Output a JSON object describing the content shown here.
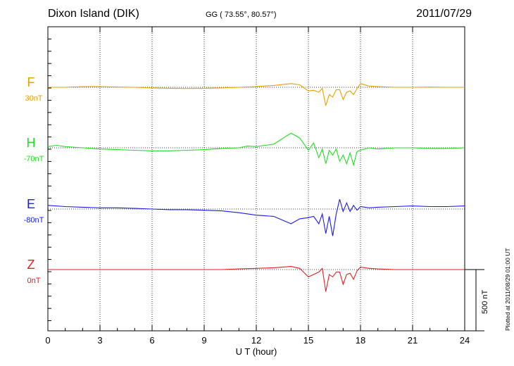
{
  "header": {
    "station": "Dixon Island (DIK)",
    "coordinates": "GG ( 73.55°,  80.57°)",
    "date": "2011/07/29"
  },
  "footer": {
    "plotted": "Plotted at 2011/08/29 01:00 UT",
    "scale_bar_label": "500 nT"
  },
  "chart_data": {
    "type": "line",
    "title": "Dixon Island (DIK)",
    "xlabel": "U T (hour)",
    "ylabel": "",
    "xlim": [
      0,
      24
    ],
    "xticks": [
      "0",
      "3",
      "6",
      "9",
      "12",
      "15",
      "18",
      "21",
      "24"
    ],
    "grid": true,
    "scale_bar_nT": 500,
    "series": [
      {
        "name": "F",
        "baseline_label": "30nT",
        "color": "#e8a000",
        "x": [
          0,
          1,
          2,
          3,
          4,
          5,
          6,
          7,
          8,
          9,
          10,
          11,
          12,
          13,
          14,
          14.5,
          15,
          15.3,
          15.6,
          15.8,
          16,
          16.2,
          16.4,
          16.6,
          16.8,
          17,
          17.2,
          17.4,
          17.6,
          17.8,
          18,
          18.5,
          19,
          20,
          21,
          22,
          23,
          24
        ],
        "y": [
          0,
          0,
          5,
          5,
          2,
          0,
          -5,
          -8,
          -10,
          -8,
          -5,
          0,
          5,
          15,
          30,
          20,
          -30,
          -25,
          -40,
          -10,
          -150,
          -60,
          -80,
          -20,
          -20,
          -100,
          -40,
          -30,
          -60,
          -10,
          30,
          10,
          5,
          0,
          0,
          2,
          0,
          0
        ]
      },
      {
        "name": "H",
        "baseline_label": "-70nT",
        "color": "#22dd22",
        "x": [
          0,
          0.5,
          1,
          2,
          3,
          4,
          5,
          6,
          7,
          8,
          9,
          10,
          11,
          11.5,
          12,
          13,
          14,
          14.5,
          15,
          15.3,
          15.6,
          15.8,
          16,
          16.2,
          16.4,
          16.6,
          16.8,
          17,
          17.2,
          17.4,
          17.6,
          17.8,
          18,
          18.5,
          19,
          20,
          21,
          22,
          23,
          24
        ],
        "y": [
          10,
          20,
          10,
          0,
          -10,
          -15,
          -20,
          -25,
          -25,
          -20,
          -15,
          -5,
          0,
          15,
          10,
          30,
          120,
          80,
          -20,
          40,
          -80,
          -10,
          -130,
          -20,
          -60,
          -10,
          -110,
          -60,
          -130,
          -40,
          -140,
          -30,
          -20,
          0,
          -10,
          0,
          0,
          -5,
          -5,
          0
        ]
      },
      {
        "name": "E",
        "baseline_label": "-80nT",
        "color": "#1a1aee",
        "x": [
          0,
          1,
          2,
          3,
          4,
          5,
          6,
          7,
          8,
          9,
          10,
          11,
          12,
          13,
          14,
          14.5,
          15,
          15.3,
          15.6,
          15.8,
          16,
          16.2,
          16.4,
          16.6,
          16.8,
          17,
          17.2,
          17.4,
          17.6,
          17.8,
          18,
          18.5,
          19,
          20,
          21,
          22,
          23,
          24
        ],
        "y": [
          30,
          20,
          15,
          10,
          10,
          5,
          0,
          -5,
          -5,
          -10,
          -15,
          -30,
          -50,
          -60,
          -120,
          -80,
          -70,
          -60,
          -120,
          -40,
          -200,
          -60,
          -220,
          -40,
          80,
          -20,
          50,
          -20,
          30,
          -10,
          20,
          10,
          15,
          20,
          25,
          20,
          20,
          25
        ]
      },
      {
        "name": "Z",
        "baseline_label": "0nT",
        "color": "#e02020",
        "x": [
          0,
          1,
          2,
          3,
          4,
          5,
          6,
          7,
          8,
          9,
          10,
          11,
          12,
          13,
          14,
          14.5,
          15,
          15.3,
          15.6,
          15.8,
          16,
          16.2,
          16.4,
          16.6,
          16.8,
          17,
          17.2,
          17.4,
          17.6,
          17.8,
          18,
          18.5,
          19,
          20,
          21,
          22,
          23,
          24
        ],
        "y": [
          0,
          0,
          0,
          0,
          0,
          0,
          0,
          0,
          0,
          0,
          0,
          5,
          10,
          15,
          25,
          10,
          -60,
          -40,
          -20,
          10,
          -180,
          -40,
          -60,
          -20,
          -20,
          -120,
          -40,
          -30,
          -80,
          -10,
          20,
          10,
          5,
          0,
          0,
          0,
          0,
          0
        ]
      }
    ]
  }
}
